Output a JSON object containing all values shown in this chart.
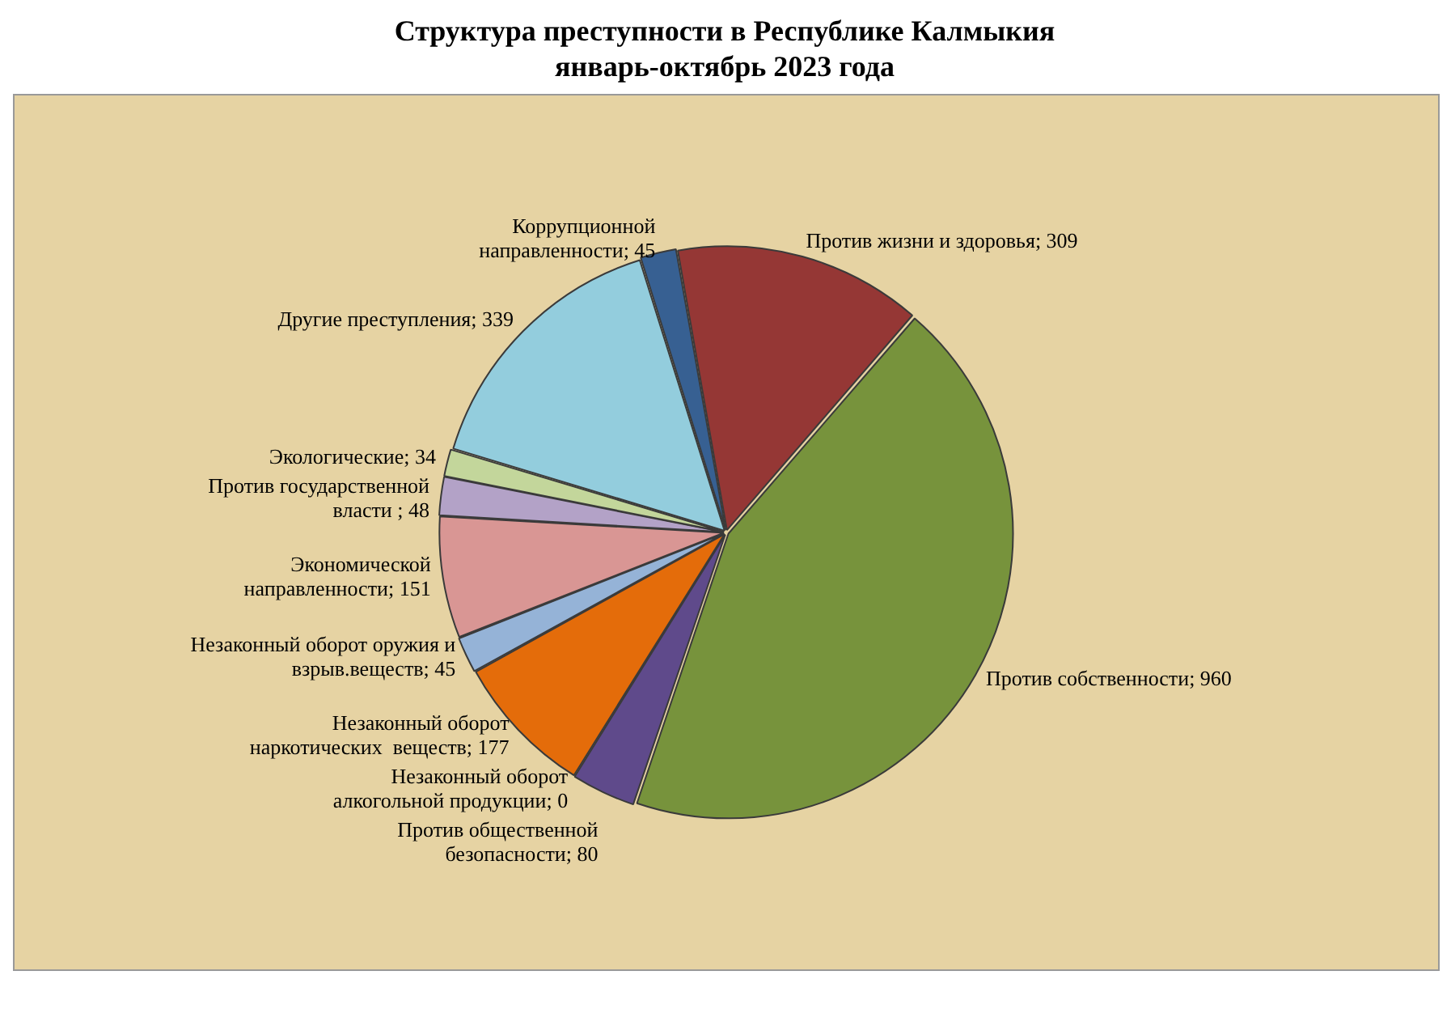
{
  "chart_data": {
    "type": "pie",
    "title": "Структура преступности в  Республике Калмыкия\nянварь-октябрь 2023 года",
    "categories": [
      "Против жизни и здоровья",
      "Против собственности",
      "Против общественной безопасности",
      "Незаконный оборот алкогольной продукции",
      "Незаконный оборот наркотических  веществ",
      "Незаконный оборот оружия и взрыв.веществ",
      "Экономической направленности",
      "Против государственной власти ",
      "Экологические",
      "Другие преступления",
      "Коррупционной направленности"
    ],
    "values": [
      309,
      960,
      80,
      0,
      177,
      45,
      151,
      48,
      34,
      339,
      45
    ],
    "colors": [
      "#953735",
      "#77933c",
      "#5f4a8b",
      "#31859c",
      "#e46c0a",
      "#95b3d7",
      "#d99694",
      "#b3a2c7",
      "#c3d69b",
      "#93cddd",
      "#376092"
    ],
    "value_labels": [
      "; 309",
      "; 960",
      "; 80",
      "; 0",
      "; 177",
      "; 45",
      "; 151",
      "; 48",
      "; 34",
      "; 339",
      "; 45"
    ]
  }
}
